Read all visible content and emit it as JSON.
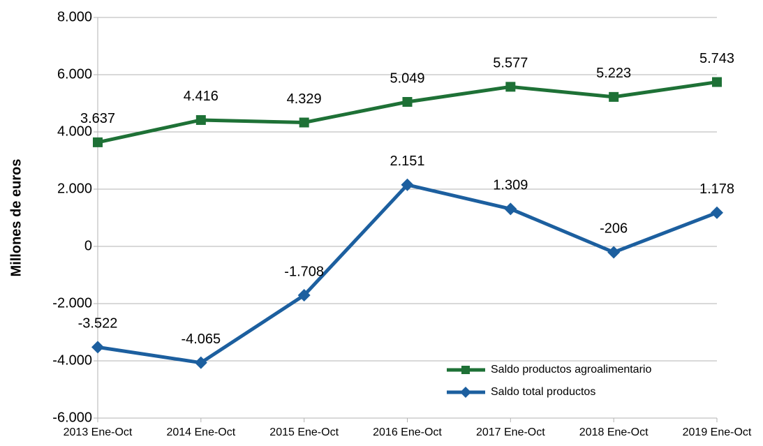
{
  "chart_data": {
    "type": "line",
    "y_label": "Millones de euros",
    "categories": [
      "2013 Ene-Oct",
      "2014 Ene-Oct",
      "2015 Ene-Oct",
      "2016 Ene-Oct",
      "2017 Ene-Oct",
      "2018 Ene-Oct",
      "2019 Ene-Oct"
    ],
    "series": [
      {
        "name": "Saldo productos agroalimentario",
        "color": "#1e7136",
        "marker": "square",
        "values": [
          3637,
          4416,
          4329,
          5049,
          5577,
          5223,
          5743
        ],
        "value_labels": [
          "3.637",
          "4.416",
          "4.329",
          "5.049",
          "5.577",
          "5.223",
          "5.743"
        ]
      },
      {
        "name": "Saldo total productos",
        "color": "#1c5f9f",
        "marker": "diamond",
        "values": [
          -3522,
          -4065,
          -1708,
          2151,
          1309,
          -206,
          1178
        ],
        "value_labels": [
          "-3.522",
          "-4.065",
          "-1.708",
          "2.151",
          "1.309",
          "-206",
          "1.178"
        ]
      }
    ],
    "ylim": [
      -6000,
      8000
    ],
    "yticks": [
      {
        "value": -6000,
        "label": "-6.000"
      },
      {
        "value": -4000,
        "label": "-4.000"
      },
      {
        "value": -2000,
        "label": "-2.000"
      },
      0,
      {
        "value": 2000,
        "label": "2.000"
      },
      {
        "value": 4000,
        "label": "4.000"
      },
      {
        "value": 6000,
        "label": "6.000"
      },
      {
        "value": 8000,
        "label": "8.000"
      }
    ],
    "grid": true,
    "legend": "lower right"
  }
}
